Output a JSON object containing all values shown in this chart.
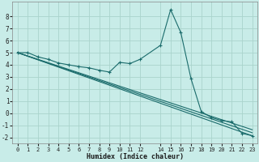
{
  "background_color": "#c8ece8",
  "grid_color": "#aad4cc",
  "line_color": "#1a6b6b",
  "xlabel": "Humidex (Indice chaleur)",
  "xlim": [
    -0.5,
    23.5
  ],
  "ylim": [
    -2.5,
    9.2
  ],
  "yticks": [
    -2,
    -1,
    0,
    1,
    2,
    3,
    4,
    5,
    6,
    7,
    8
  ],
  "xticks": [
    0,
    1,
    2,
    3,
    4,
    5,
    6,
    7,
    8,
    9,
    10,
    11,
    12,
    14,
    15,
    16,
    17,
    18,
    19,
    20,
    21,
    22,
    23
  ],
  "line1_x": [
    0,
    1,
    2,
    3,
    4,
    5,
    6,
    7,
    8,
    9,
    10,
    11,
    12,
    14,
    15,
    16,
    17,
    18,
    19,
    20,
    21,
    22,
    23
  ],
  "line1_y": [
    5.0,
    5.0,
    4.65,
    4.45,
    4.15,
    4.0,
    3.85,
    3.75,
    3.55,
    3.4,
    4.2,
    4.1,
    4.45,
    5.6,
    8.55,
    6.65,
    2.85,
    0.15,
    -0.35,
    -0.6,
    -0.7,
    -1.65,
    -1.85
  ],
  "line2_x": [
    0,
    23
  ],
  "line2_y": [
    5.0,
    -1.85
  ],
  "line3_x": [
    0,
    23
  ],
  "line3_y": [
    5.0,
    -1.6
  ],
  "line4_x": [
    0,
    23
  ],
  "line4_y": [
    5.0,
    -1.35
  ]
}
